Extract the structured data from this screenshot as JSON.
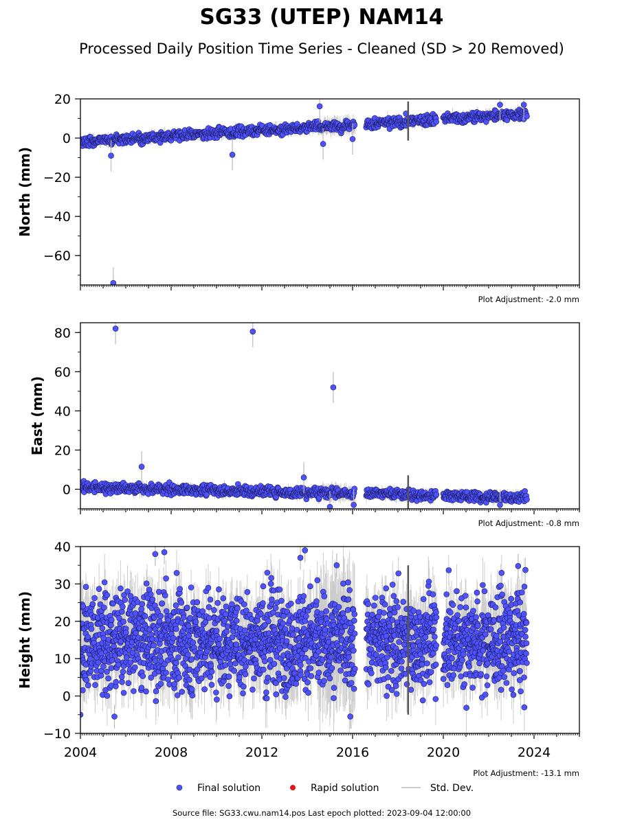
{
  "title": "SG33 (UTEP) NAM14",
  "subtitle": "Processed Daily Position Time Series - Cleaned (SD > 20 Removed)",
  "footer": "Source file: SG33.cwu.nam14.pos  Last epoch plotted: 2023-09-04 12:00:00",
  "legend": {
    "placement": "bottom-center",
    "items": [
      {
        "label": "Final solution",
        "color": "#4f52ff",
        "marker": "circle"
      },
      {
        "label": "Rapid solution",
        "color": "#e0141b",
        "marker": "circle"
      },
      {
        "label": "Std. Dev.",
        "color": "#bbbbbb",
        "marker": "line"
      }
    ]
  },
  "chart_data": [
    {
      "type": "scatter",
      "ylabel": "North (mm)",
      "xlim": [
        2004,
        2026
      ],
      "ylim": [
        -75,
        20
      ],
      "yticks": [
        20,
        0,
        -20,
        -40,
        -60
      ],
      "ytick_labels": [
        "20",
        "0",
        "−20",
        "−40",
        "−60"
      ],
      "xticks": [
        2004,
        2008,
        2012,
        2016,
        2020,
        2024
      ],
      "xtick_labels": [],
      "adjustment": "Plot Adjustment: -2.0 mm",
      "trend": {
        "start": -2,
        "rate": 0.74,
        "noise": 1.3
      },
      "segments": [
        [
          2004.0,
          2016.1
        ],
        [
          2016.6,
          2018.4
        ],
        [
          2018.45,
          2019.7
        ],
        [
          2020.0,
          2023.68
        ]
      ],
      "outliers": [
        {
          "x": 2005.45,
          "y": -74.0
        },
        {
          "x": 2005.35,
          "y": -9.0
        },
        {
          "x": 2010.7,
          "y": -8.5
        },
        {
          "x": 2014.55,
          "y": 16.2
        },
        {
          "x": 2014.7,
          "y": -3.0
        },
        {
          "x": 2016.0,
          "y": -0.5
        },
        {
          "x": 2022.5,
          "y": 17.0
        },
        {
          "x": 2023.55,
          "y": 17.0
        }
      ]
    },
    {
      "type": "scatter",
      "ylabel": "East (mm)",
      "xlim": [
        2004,
        2026
      ],
      "ylim": [
        -10,
        85
      ],
      "yticks": [
        80,
        60,
        40,
        20,
        0
      ],
      "ytick_labels": [
        "80",
        "60",
        "40",
        "20",
        "0"
      ],
      "xticks": [
        2004,
        2008,
        2012,
        2016,
        2020,
        2024
      ],
      "xtick_labels": [],
      "adjustment": "Plot Adjustment: -0.8 mm",
      "trend": {
        "start": 1.0,
        "rate": -0.27,
        "noise": 1.3
      },
      "segments": [
        [
          2004.0,
          2016.1
        ],
        [
          2016.6,
          2018.4
        ],
        [
          2018.45,
          2019.7
        ],
        [
          2020.0,
          2023.68
        ]
      ],
      "outliers": [
        {
          "x": 2005.55,
          "y": 82.0
        },
        {
          "x": 2011.6,
          "y": 80.5
        },
        {
          "x": 2015.15,
          "y": 52.0
        },
        {
          "x": 2006.7,
          "y": 11.5
        },
        {
          "x": 2013.85,
          "y": 6.0
        },
        {
          "x": 2015.0,
          "y": -9.0
        },
        {
          "x": 2016.05,
          "y": -8.0
        },
        {
          "x": 2022.5,
          "y": -8.0
        }
      ]
    },
    {
      "type": "scatter",
      "ylabel": "Height (mm)",
      "xlim": [
        2004,
        2026
      ],
      "ylim": [
        -10,
        40
      ],
      "yticks": [
        40,
        30,
        20,
        10,
        0,
        -10
      ],
      "ytick_labels": [
        "40",
        "30",
        "20",
        "10",
        "0",
        "−10"
      ],
      "xticks": [
        2004,
        2008,
        2012,
        2016,
        2020,
        2024
      ],
      "xtick_labels": [
        "2004",
        "2008",
        "2012",
        "2016",
        "2020",
        "2024"
      ],
      "adjustment": "Plot Adjustment: -13.1 mm",
      "trend": {
        "start": 15,
        "rate": 0,
        "noise": 6.5
      },
      "segments": [
        [
          2004.0,
          2016.1
        ],
        [
          2016.6,
          2018.4
        ],
        [
          2018.45,
          2019.7
        ],
        [
          2020.0,
          2023.68
        ]
      ],
      "outliers": [
        {
          "x": 2007.3,
          "y": 38.0
        },
        {
          "x": 2007.7,
          "y": 38.5
        },
        {
          "x": 2013.9,
          "y": 39.0
        },
        {
          "x": 2013.7,
          "y": 37.0
        },
        {
          "x": 2015.3,
          "y": 35.0
        },
        {
          "x": 2023.3,
          "y": 34.8
        },
        {
          "x": 2004.0,
          "y": -5.0
        },
        {
          "x": 2015.9,
          "y": -5.5
        },
        {
          "x": 2005.5,
          "y": -5.5
        }
      ]
    }
  ]
}
